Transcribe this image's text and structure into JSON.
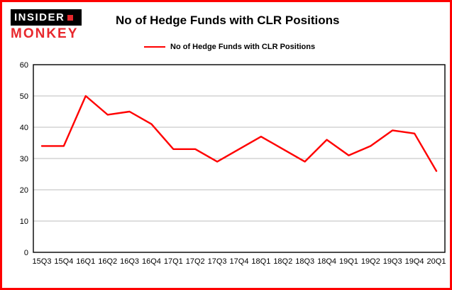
{
  "logo": {
    "line1": "INSIDER",
    "line2": "MONKEY"
  },
  "header": {
    "title": "No of Hedge Funds with CLR Positions"
  },
  "legend": {
    "label": "No of Hedge Funds with CLR Positions",
    "color": "#ff0000"
  },
  "colors": {
    "page_border": "#fe0000",
    "background": "#ffffff",
    "gridline": "#bebebe",
    "logo_red": "#e8282d"
  },
  "chart_data": {
    "type": "line",
    "title": "No of Hedge Funds with CLR Positions",
    "series_name": "No of Hedge Funds with CLR Positions",
    "categories": [
      "15Q3",
      "15Q4",
      "16Q1",
      "16Q2",
      "16Q3",
      "16Q4",
      "17Q1",
      "17Q2",
      "17Q3",
      "17Q4",
      "18Q1",
      "18Q2",
      "18Q3",
      "18Q4",
      "19Q1",
      "19Q2",
      "19Q3",
      "19Q4",
      "20Q1"
    ],
    "values": [
      34,
      34,
      50,
      44,
      45,
      41,
      33,
      33,
      29,
      33,
      37,
      33,
      29,
      36,
      31,
      34,
      39,
      38,
      26
    ],
    "line_color": "#ff0000",
    "xlabel": "",
    "ylabel": "",
    "ylim": [
      0,
      60
    ],
    "yticks": [
      0,
      10,
      20,
      30,
      40,
      50,
      60
    ],
    "grid": true,
    "legend_position": "top-left"
  }
}
